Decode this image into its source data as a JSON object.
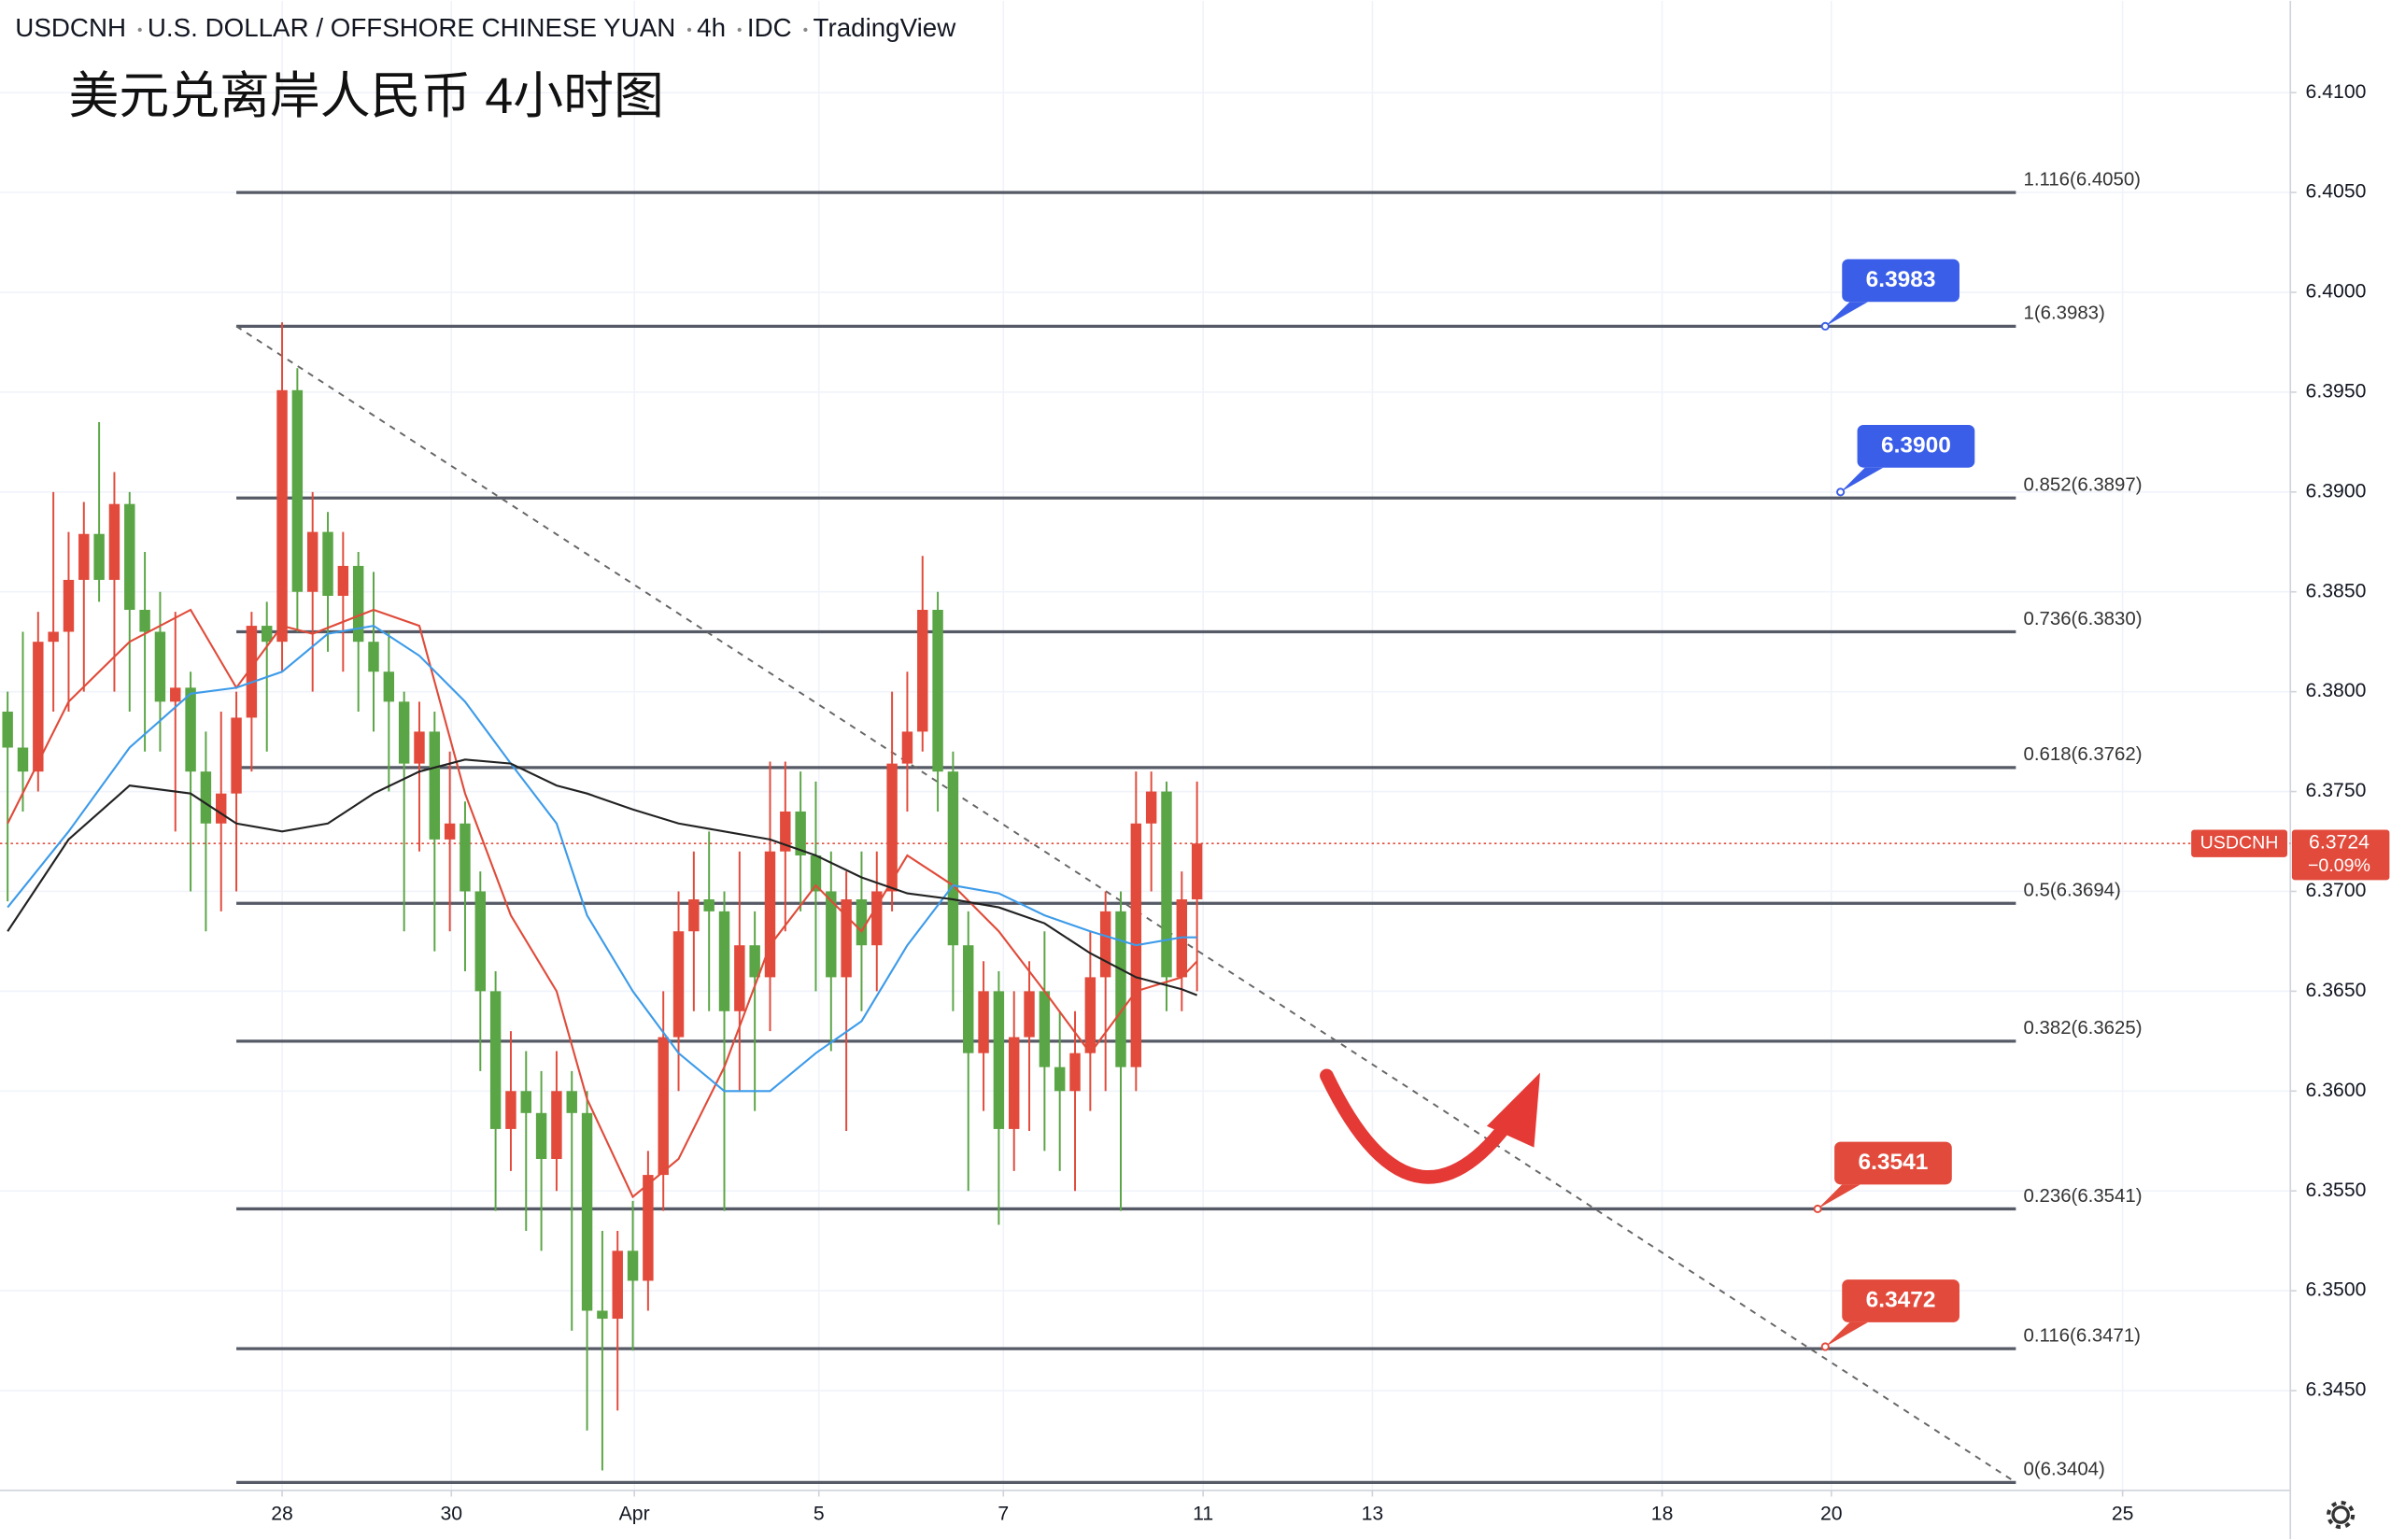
{
  "chart_data": {
    "type": "candlestick",
    "header": [
      "USDCNH",
      "U.S. DOLLAR / OFFSHORE CHINESE YUAN",
      "4h",
      "IDC",
      "TradingView"
    ],
    "title": "美元兑离岸人民币 4小时图",
    "up_color": "#e24a3b",
    "down_color": "#5aa545",
    "xlim": [
      -0.5,
      149.7
    ],
    "ylim": [
      6.34,
      6.4146
    ],
    "xticks": [
      {
        "value": 18,
        "label": "28"
      },
      {
        "value": 29.1,
        "label": "30"
      },
      {
        "value": 41.1,
        "label": "Apr"
      },
      {
        "value": 53.2,
        "label": "5"
      },
      {
        "value": 65.3,
        "label": "7"
      },
      {
        "value": 78.4,
        "label": "11"
      },
      {
        "value": 89.5,
        "label": "13"
      },
      {
        "value": 108.5,
        "label": "18"
      },
      {
        "value": 119.6,
        "label": "20"
      },
      {
        "value": 138.7,
        "label": "25"
      }
    ],
    "yticks": [
      {
        "value": 6.41,
        "label": "6.4100"
      },
      {
        "value": 6.405,
        "label": "6.4050"
      },
      {
        "value": 6.4,
        "label": "6.4000"
      },
      {
        "value": 6.395,
        "label": "6.3950"
      },
      {
        "value": 6.39,
        "label": "6.3900"
      },
      {
        "value": 6.385,
        "label": "6.3850"
      },
      {
        "value": 6.38,
        "label": "6.3800"
      },
      {
        "value": 6.375,
        "label": "6.3750"
      },
      {
        "value": 6.37,
        "label": "6.3700"
      },
      {
        "value": 6.365,
        "label": "6.3650"
      },
      {
        "value": 6.36,
        "label": "6.3600"
      },
      {
        "value": 6.355,
        "label": "6.3550"
      },
      {
        "value": 6.35,
        "label": "6.3500"
      },
      {
        "value": 6.345,
        "label": "6.3450"
      }
    ],
    "grid": true,
    "candles": [
      [
        6.379,
        6.38,
        6.3695,
        6.3772
      ],
      [
        6.3772,
        6.383,
        6.374,
        6.376
      ],
      [
        6.376,
        6.384,
        6.375,
        6.3825
      ],
      [
        6.3825,
        6.39,
        6.379,
        6.383
      ],
      [
        6.383,
        6.388,
        6.379,
        6.3856
      ],
      [
        6.3856,
        6.3895,
        6.38,
        6.3879
      ],
      [
        6.3879,
        6.3935,
        6.3845,
        6.3856
      ],
      [
        6.3856,
        6.391,
        6.38,
        6.3894
      ],
      [
        6.3894,
        6.39,
        6.379,
        6.3841
      ],
      [
        6.3841,
        6.387,
        6.377,
        6.383
      ],
      [
        6.383,
        6.385,
        6.377,
        6.3795
      ],
      [
        6.3795,
        6.384,
        6.373,
        6.3802
      ],
      [
        6.3802,
        6.381,
        6.37,
        6.376
      ],
      [
        6.376,
        6.378,
        6.368,
        6.3734
      ],
      [
        6.3734,
        6.379,
        6.369,
        6.3749
      ],
      [
        6.3749,
        6.38,
        6.37,
        6.3787
      ],
      [
        6.3787,
        6.384,
        6.376,
        6.3833
      ],
      [
        6.3833,
        6.3845,
        6.377,
        6.3825
      ],
      [
        6.3825,
        6.3985,
        6.381,
        6.3951
      ],
      [
        6.3951,
        6.3962,
        6.383,
        6.385
      ],
      [
        6.385,
        6.39,
        6.38,
        6.388
      ],
      [
        6.388,
        6.389,
        6.382,
        6.3848
      ],
      [
        6.3848,
        6.388,
        6.381,
        6.3863
      ],
      [
        6.3863,
        6.387,
        6.379,
        6.3825
      ],
      [
        6.3825,
        6.386,
        6.378,
        6.381
      ],
      [
        6.381,
        6.383,
        6.375,
        6.3795
      ],
      [
        6.3795,
        6.38,
        6.368,
        6.3764
      ],
      [
        6.3764,
        6.3795,
        6.372,
        6.378
      ],
      [
        6.378,
        6.379,
        6.367,
        6.3726
      ],
      [
        6.3726,
        6.377,
        6.368,
        6.3734
      ],
      [
        6.3734,
        6.3745,
        6.366,
        6.37
      ],
      [
        6.37,
        6.371,
        6.361,
        6.365
      ],
      [
        6.365,
        6.366,
        6.354,
        6.3581
      ],
      [
        6.3581,
        6.363,
        6.356,
        6.36
      ],
      [
        6.36,
        6.362,
        6.353,
        6.3589
      ],
      [
        6.3589,
        6.361,
        6.352,
        6.3566
      ],
      [
        6.3566,
        6.362,
        6.355,
        6.36
      ],
      [
        6.36,
        6.361,
        6.348,
        6.3589
      ],
      [
        6.3589,
        6.36,
        6.343,
        6.349
      ],
      [
        6.349,
        6.353,
        6.341,
        6.3486
      ],
      [
        6.3486,
        6.353,
        6.344,
        6.352
      ],
      [
        6.352,
        6.3545,
        6.347,
        6.3505
      ],
      [
        6.3505,
        6.357,
        6.349,
        6.3558
      ],
      [
        6.3558,
        6.365,
        6.354,
        6.3627
      ],
      [
        6.3627,
        6.37,
        6.36,
        6.368
      ],
      [
        6.368,
        6.372,
        6.364,
        6.3696
      ],
      [
        6.3696,
        6.373,
        6.364,
        6.369
      ],
      [
        6.369,
        6.37,
        6.354,
        6.364
      ],
      [
        6.364,
        6.372,
        6.36,
        6.3673
      ],
      [
        6.3673,
        6.369,
        6.359,
        6.3657
      ],
      [
        6.3657,
        6.3765,
        6.363,
        6.372
      ],
      [
        6.372,
        6.3765,
        6.368,
        6.374
      ],
      [
        6.374,
        6.376,
        6.369,
        6.3718
      ],
      [
        6.3718,
        6.3755,
        6.365,
        6.37
      ],
      [
        6.37,
        6.372,
        6.362,
        6.3657
      ],
      [
        6.3657,
        6.371,
        6.358,
        6.3696
      ],
      [
        6.3696,
        6.372,
        6.364,
        6.3673
      ],
      [
        6.3673,
        6.372,
        6.365,
        6.37
      ],
      [
        6.37,
        6.38,
        6.369,
        6.3764
      ],
      [
        6.3764,
        6.381,
        6.374,
        6.378
      ],
      [
        6.378,
        6.3868,
        6.377,
        6.3841
      ],
      [
        6.3841,
        6.385,
        6.374,
        6.376
      ],
      [
        6.376,
        6.377,
        6.364,
        6.3673
      ],
      [
        6.3673,
        6.369,
        6.355,
        6.3619
      ],
      [
        6.3619,
        6.3665,
        6.359,
        6.365
      ],
      [
        6.365,
        6.366,
        6.3533,
        6.3581
      ],
      [
        6.3581,
        6.365,
        6.356,
        6.3627
      ],
      [
        6.3627,
        6.3665,
        6.358,
        6.365
      ],
      [
        6.365,
        6.368,
        6.357,
        6.3612
      ],
      [
        6.3612,
        6.364,
        6.356,
        6.36
      ],
      [
        6.36,
        6.364,
        6.355,
        6.3619
      ],
      [
        6.3619,
        6.368,
        6.359,
        6.3657
      ],
      [
        6.3657,
        6.37,
        6.36,
        6.369
      ],
      [
        6.369,
        6.37,
        6.354,
        6.3612
      ],
      [
        6.3612,
        6.376,
        6.36,
        6.3734
      ],
      [
        6.3734,
        6.376,
        6.37,
        6.375
      ],
      [
        6.375,
        6.3755,
        6.364,
        6.3657
      ],
      [
        6.3657,
        6.371,
        6.364,
        6.3696
      ],
      [
        6.3696,
        6.3755,
        6.365,
        6.3724
      ]
    ],
    "moving_averages": [
      {
        "color": "#e04b3a",
        "x": [
          0,
          4,
          8,
          12,
          15,
          18,
          20,
          24,
          27,
          30,
          33,
          36,
          38,
          41,
          44,
          47,
          50,
          53,
          56,
          59,
          62,
          65,
          68,
          71,
          74,
          77,
          78
        ],
        "values": [
          6.3734,
          6.3795,
          6.3825,
          6.3841,
          6.3802,
          6.3833,
          6.3829,
          6.3841,
          6.3833,
          6.3749,
          6.3688,
          6.365,
          6.3596,
          6.3547,
          6.3566,
          6.3612,
          6.3673,
          6.3703,
          6.368,
          6.3718,
          6.3703,
          6.368,
          6.365,
          6.3619,
          6.365,
          6.3657,
          6.3665
        ]
      },
      {
        "color": "#3d9be9",
        "x": [
          0,
          4,
          8,
          12,
          15,
          18,
          21,
          24,
          27,
          30,
          33,
          36,
          38,
          41,
          44,
          47,
          50,
          53,
          56,
          59,
          62,
          65,
          68,
          71,
          74,
          77,
          78
        ],
        "values": [
          6.3692,
          6.373,
          6.3772,
          6.3799,
          6.3802,
          6.381,
          6.3829,
          6.3833,
          6.3818,
          6.3795,
          6.3764,
          6.3734,
          6.3688,
          6.365,
          6.3619,
          6.36,
          6.36,
          6.3619,
          6.3635,
          6.3673,
          6.3703,
          6.3699,
          6.3688,
          6.368,
          6.3673,
          6.3677,
          6.3677
        ]
      },
      {
        "color": "#222222",
        "x": [
          0,
          4,
          8,
          12,
          15,
          18,
          21,
          24,
          27,
          30,
          33,
          36,
          38,
          41,
          44,
          47,
          50,
          53,
          56,
          59,
          62,
          65,
          68,
          71,
          74,
          77,
          78
        ],
        "values": [
          6.368,
          6.3726,
          6.3753,
          6.3749,
          6.3734,
          6.373,
          6.3734,
          6.3749,
          6.376,
          6.3766,
          6.3764,
          6.3753,
          6.3749,
          6.3741,
          6.3734,
          6.373,
          6.3726,
          6.3718,
          6.3707,
          6.3699,
          6.3696,
          6.3692,
          6.3684,
          6.3669,
          6.3657,
          6.3651,
          6.3648
        ]
      }
    ],
    "fib_x_range": [
      15,
      131.7
    ],
    "fib_levels": [
      {
        "value": 6.405,
        "label": "1.116(6.4050)"
      },
      {
        "value": 6.3983,
        "label": "1(6.3983)"
      },
      {
        "value": 6.3897,
        "label": "0.852(6.3897)"
      },
      {
        "value": 6.383,
        "label": "0.736(6.3830)"
      },
      {
        "value": 6.3762,
        "label": "0.618(6.3762)"
      },
      {
        "value": 6.3694,
        "label": "0.5(6.3694)"
      },
      {
        "value": 6.3625,
        "label": "0.382(6.3625)"
      },
      {
        "value": 6.3541,
        "label": "0.236(6.3541)"
      },
      {
        "value": 6.3471,
        "label": "0.116(6.3471)"
      },
      {
        "value": 6.3404,
        "label": "0(6.3404)"
      }
    ],
    "trendline": {
      "x": [
        15,
        131.7
      ],
      "y": [
        6.3983,
        6.3404
      ]
    },
    "callouts": [
      {
        "x": 119.2,
        "price": 6.3983,
        "color": "#3a5ee8"
      },
      {
        "x": 120.2,
        "price": {
          "value": 6.39,
          "label": "6.3900"
        },
        "color": "#3a5ee8"
      },
      {
        "x": 118.7,
        "price": 6.3541,
        "color": "#e24a3b"
      },
      {
        "x": 119.2,
        "price": {
          "value": 6.3472,
          "label": "6.3472"
        },
        "color": "#e24a3b"
      }
    ],
    "last": {
      "symbol": "USDCNH",
      "price": 6.3724,
      "change": {
        "value": -0.09,
        "label": "−0.09%"
      },
      "color": "#e24a3b"
    }
  }
}
